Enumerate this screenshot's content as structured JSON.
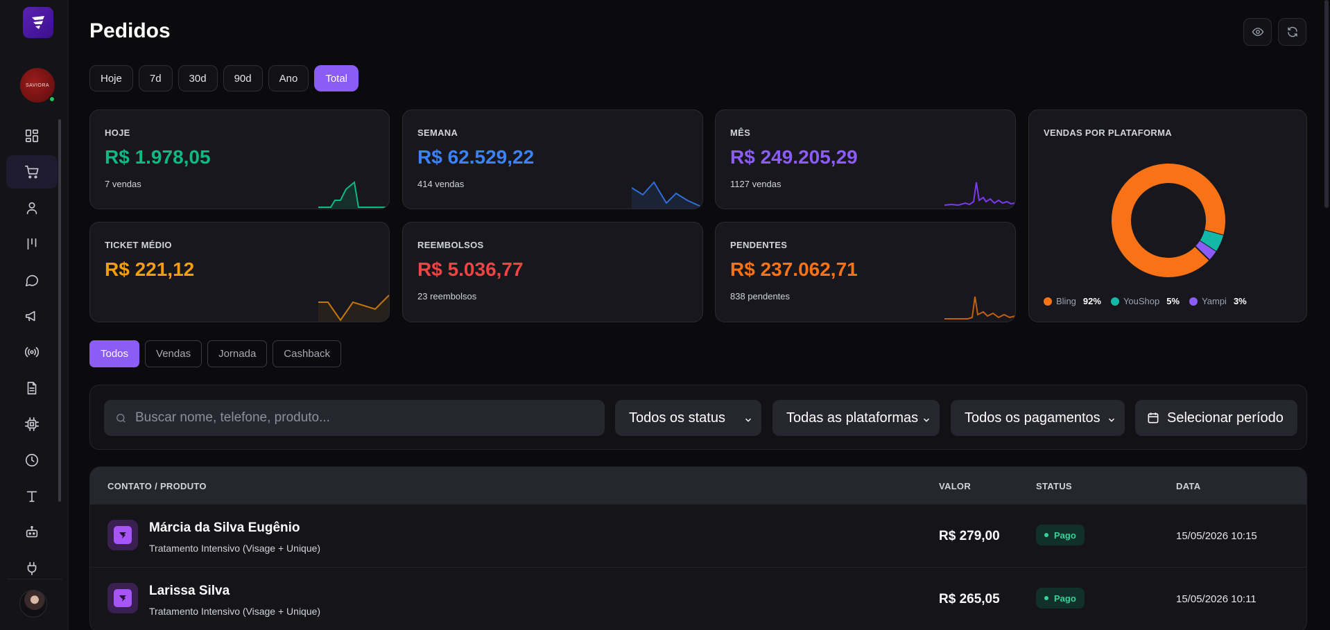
{
  "page": {
    "title": "Pedidos"
  },
  "sidebar": {
    "brand_avatar_text": "SAVIORA",
    "items": [
      {
        "name": "dashboard",
        "icon": "grid-icon"
      },
      {
        "name": "pedidos",
        "icon": "cart-icon",
        "active": true
      },
      {
        "name": "contatos",
        "icon": "user-icon"
      },
      {
        "name": "kanban",
        "icon": "columns-icon"
      },
      {
        "name": "chat",
        "icon": "chat-icon"
      },
      {
        "name": "campanhas",
        "icon": "megaphone-icon"
      },
      {
        "name": "broadcast",
        "icon": "broadcast-icon"
      },
      {
        "name": "documentos",
        "icon": "document-icon"
      },
      {
        "name": "integracoes",
        "icon": "chip-icon"
      },
      {
        "name": "historico",
        "icon": "clock-icon"
      },
      {
        "name": "templates",
        "icon": "text-icon"
      },
      {
        "name": "bots",
        "icon": "robot-icon"
      },
      {
        "name": "plugins",
        "icon": "plug-icon"
      }
    ]
  },
  "ranges": [
    "Hoje",
    "7d",
    "30d",
    "90d",
    "Ano",
    "Total"
  ],
  "active_range": "Total",
  "stats": {
    "hoje": {
      "label": "HOJE",
      "value": "R$ 1.978,05",
      "sub": "7 vendas",
      "color": "#10b981"
    },
    "semana": {
      "label": "SEMANA",
      "value": "R$ 62.529,22",
      "sub": "414 vendas",
      "color": "#3b82f6"
    },
    "mes": {
      "label": "MÊS",
      "value": "R$ 249.205,29",
      "sub": "1127 vendas",
      "color": "#8b5cf6"
    },
    "ticket": {
      "label": "TICKET MÉDIO",
      "value": "R$ 221,12",
      "sub": "",
      "color": "#f59e0b"
    },
    "reembolsos": {
      "label": "REEMBOLSOS",
      "value": "R$ 5.036,77",
      "sub": "23 reembolsos",
      "color": "#ef4444"
    },
    "pendentes": {
      "label": "PENDENTES",
      "value": "R$ 237.062,71",
      "sub": "838 pendentes",
      "color": "#f97316"
    }
  },
  "platform_chart": {
    "label": "VENDAS POR PLATAFORMA",
    "legend": [
      {
        "name": "Bling",
        "pct": "92%",
        "color": "#f97316"
      },
      {
        "name": "YouShop",
        "pct": "5%",
        "color": "#14b8a6"
      },
      {
        "name": "Yampi",
        "pct": "3%",
        "color": "#8b5cf6"
      }
    ]
  },
  "chart_data": {
    "type": "pie",
    "title": "VENDAS POR PLATAFORMA",
    "categories": [
      "Bling",
      "YouShop",
      "Yampi"
    ],
    "values": [
      92,
      5,
      3
    ]
  },
  "tabs": [
    "Todos",
    "Vendas",
    "Jornada",
    "Cashback"
  ],
  "active_tab": "Todos",
  "filters": {
    "search_placeholder": "Buscar nome, telefone, produto...",
    "status": "Todos os status",
    "platform": "Todas as plataformas",
    "payment": "Todos os pagamentos",
    "period": "Selecionar período"
  },
  "table": {
    "headers": {
      "contact": "CONTATO / PRODUTO",
      "valor": "VALOR",
      "status": "STATUS",
      "data": "DATA"
    },
    "rows": [
      {
        "name": "Márcia da Silva Eugênio",
        "product": "Tratamento Intensivo (Visage + Unique)",
        "valor": "R$ 279,00",
        "status": "Pago",
        "date": "15/05/2026 10:15"
      },
      {
        "name": "Larissa Silva",
        "product": "Tratamento Intensivo (Visage + Unique)",
        "valor": "R$ 265,05",
        "status": "Pago",
        "date": "15/05/2026 10:11"
      }
    ]
  }
}
